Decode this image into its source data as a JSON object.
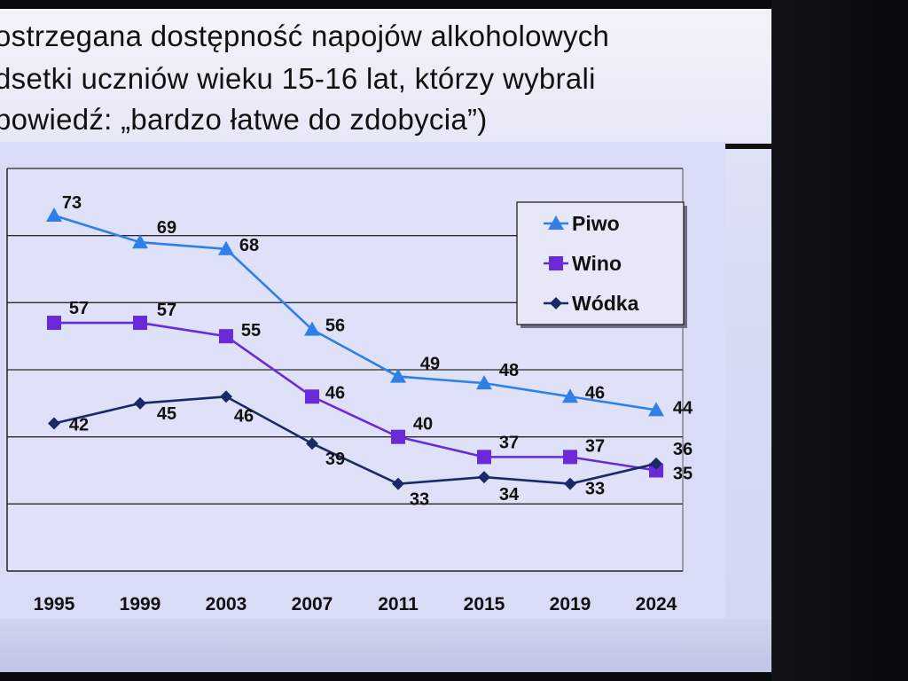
{
  "title": {
    "lines": [
      "ostrzegana dostępność napojów alkoholowych",
      "dsetki uczniów  wieku 15-16 lat, którzy wybrali",
      "powiedź:  „bardzo łatwe do zdobycia”)"
    ]
  },
  "chart_data": {
    "type": "line",
    "categories": [
      "1995",
      "1999",
      "2003",
      "2007",
      "2011",
      "2015",
      "2019",
      "2024"
    ],
    "ylim": [
      20,
      80
    ],
    "grid": true,
    "legend_placement": "top-right",
    "series": [
      {
        "name": "Piwo",
        "marker": "triangle",
        "color": "#2f7fe8",
        "values": [
          73,
          69,
          68,
          56,
          49,
          48,
          46,
          44
        ]
      },
      {
        "name": "Wino",
        "marker": "square",
        "color": "#6a2ad8",
        "values": [
          57,
          57,
          55,
          46,
          40,
          37,
          37,
          35
        ]
      },
      {
        "name": "Wódka",
        "marker": "diamond",
        "color": "#1b2a66",
        "values": [
          42,
          45,
          46,
          39,
          33,
          34,
          33,
          36
        ]
      }
    ]
  }
}
